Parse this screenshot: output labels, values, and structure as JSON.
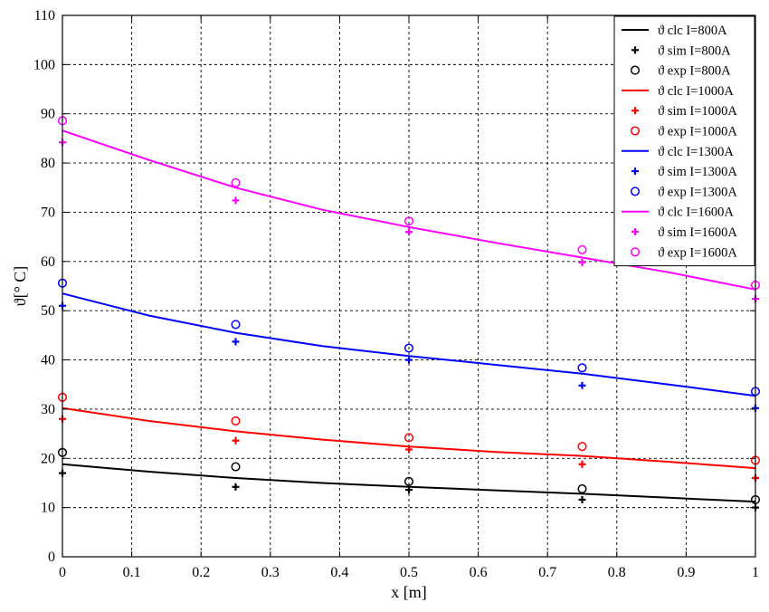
{
  "chart_data": {
    "type": "line",
    "title": "",
    "xlabel": "x [m]",
    "ylabel": "ϑ[° C]",
    "xlim": [
      0,
      1
    ],
    "ylim": [
      0,
      110
    ],
    "xticks": [
      0,
      0.1,
      0.2,
      0.3,
      0.4,
      0.5,
      0.6,
      0.7,
      0.8,
      0.9,
      1
    ],
    "xtick_labels": [
      "0",
      "0.1",
      "0.2",
      "0.3",
      "0.4",
      "0.5",
      "0.6",
      "0.7",
      "0.8",
      "0.9",
      "1"
    ],
    "yticks": [
      0,
      10,
      20,
      30,
      40,
      50,
      60,
      70,
      80,
      90,
      100,
      110
    ],
    "ytick_labels": [
      "0",
      "10",
      "20",
      "30",
      "40",
      "50",
      "60",
      "70",
      "80",
      "90",
      "100",
      "110"
    ],
    "grid": true,
    "legend_position": "top-right",
    "groups": [
      {
        "color": "#000000",
        "clc": {
          "name": "ϑ clc  I=800A",
          "x": [
            0,
            0.125,
            0.25,
            0.375,
            0.5,
            0.625,
            0.75,
            0.875,
            1
          ],
          "y": [
            18.8,
            17.3,
            16.0,
            15.0,
            14.2,
            13.5,
            12.8,
            12.0,
            11.2
          ]
        },
        "sim": {
          "name": "ϑ sim I=800A",
          "x": [
            0,
            0.25,
            0.5,
            0.75,
            1
          ],
          "y": [
            17.0,
            14.2,
            13.6,
            11.6,
            10.0
          ]
        },
        "exp": {
          "name": "ϑ exp I=800A",
          "x": [
            0,
            0.25,
            0.5,
            0.75,
            1
          ],
          "y": [
            21.2,
            18.3,
            15.3,
            13.8,
            11.6
          ]
        }
      },
      {
        "color": "#ff0000",
        "clc": {
          "name": "ϑ clc  I=1000A",
          "x": [
            0,
            0.125,
            0.25,
            0.375,
            0.5,
            0.625,
            0.75,
            0.875,
            1
          ],
          "y": [
            30.2,
            27.6,
            25.5,
            23.8,
            22.4,
            21.3,
            20.5,
            19.3,
            18.0
          ]
        },
        "sim": {
          "name": "ϑ sim I=1000A",
          "x": [
            0,
            0.25,
            0.5,
            0.75,
            1
          ],
          "y": [
            28.0,
            23.6,
            21.8,
            18.8,
            16.0
          ]
        },
        "exp": {
          "name": "ϑ exp I=1000A",
          "x": [
            0,
            0.25,
            0.5,
            0.75,
            1
          ],
          "y": [
            32.4,
            27.6,
            24.2,
            22.4,
            19.6
          ]
        }
      },
      {
        "color": "#0000ff",
        "clc": {
          "name": "ϑ clc  I=1300A",
          "x": [
            0,
            0.125,
            0.25,
            0.375,
            0.5,
            0.625,
            0.75,
            0.875,
            1
          ],
          "y": [
            53.5,
            49.0,
            45.5,
            42.8,
            40.8,
            39.0,
            37.2,
            35.0,
            32.7
          ]
        },
        "sim": {
          "name": "ϑ sim I=1300A",
          "x": [
            0,
            0.25,
            0.5,
            0.75,
            1
          ],
          "y": [
            51.0,
            43.7,
            40.0,
            34.8,
            30.2
          ]
        },
        "exp": {
          "name": "ϑ exp I=1300A",
          "x": [
            0,
            0.25,
            0.5,
            0.75,
            1
          ],
          "y": [
            55.6,
            47.2,
            42.4,
            38.4,
            33.6
          ]
        }
      },
      {
        "color": "#ff00ff",
        "clc": {
          "name": "ϑ clc  I=1600A",
          "x": [
            0,
            0.125,
            0.25,
            0.375,
            0.5,
            0.625,
            0.75,
            0.875,
            1
          ],
          "y": [
            86.6,
            80.6,
            75.0,
            70.5,
            67.0,
            63.8,
            60.8,
            57.8,
            54.3
          ]
        },
        "sim": {
          "name": "ϑ sim I=1600A",
          "x": [
            0,
            0.25,
            0.5,
            0.75,
            1
          ],
          "y": [
            84.2,
            72.4,
            66.0,
            59.8,
            52.4
          ]
        },
        "exp": {
          "name": "ϑ exp I=1600A",
          "x": [
            0,
            0.25,
            0.5,
            0.75,
            1
          ],
          "y": [
            88.6,
            76.0,
            68.2,
            62.4,
            55.2
          ]
        }
      }
    ]
  }
}
